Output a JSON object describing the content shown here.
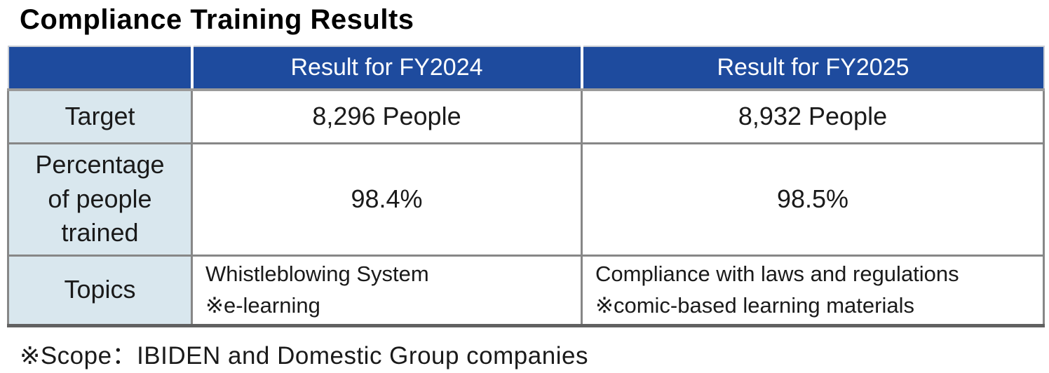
{
  "page_title": "Compliance Training Results",
  "table": {
    "columns": [
      "",
      "Result for FY2024",
      "Result for FY2025"
    ],
    "rows": [
      {
        "label": "Target",
        "fy2024": "8,296 People",
        "fy2025": "8,932 People"
      },
      {
        "label": "Percentage\nof people\ntrained",
        "fy2024": "98.4%",
        "fy2025": "98.5%"
      },
      {
        "label": "Topics",
        "fy2024": "Whistleblowing System\n※e-learning",
        "fy2025": "Compliance with laws and regulations\n※comic-based learning materials"
      }
    ]
  },
  "footnote": "※Scope：IBIDEN and Domestic Group companies",
  "colors": {
    "header_bg": "#1e4b9e",
    "header_text": "#ffffff",
    "header_divider": "#ffffff",
    "label_bg": "#d9e7ee",
    "border": "#878787",
    "text": "#1a1a1a"
  }
}
